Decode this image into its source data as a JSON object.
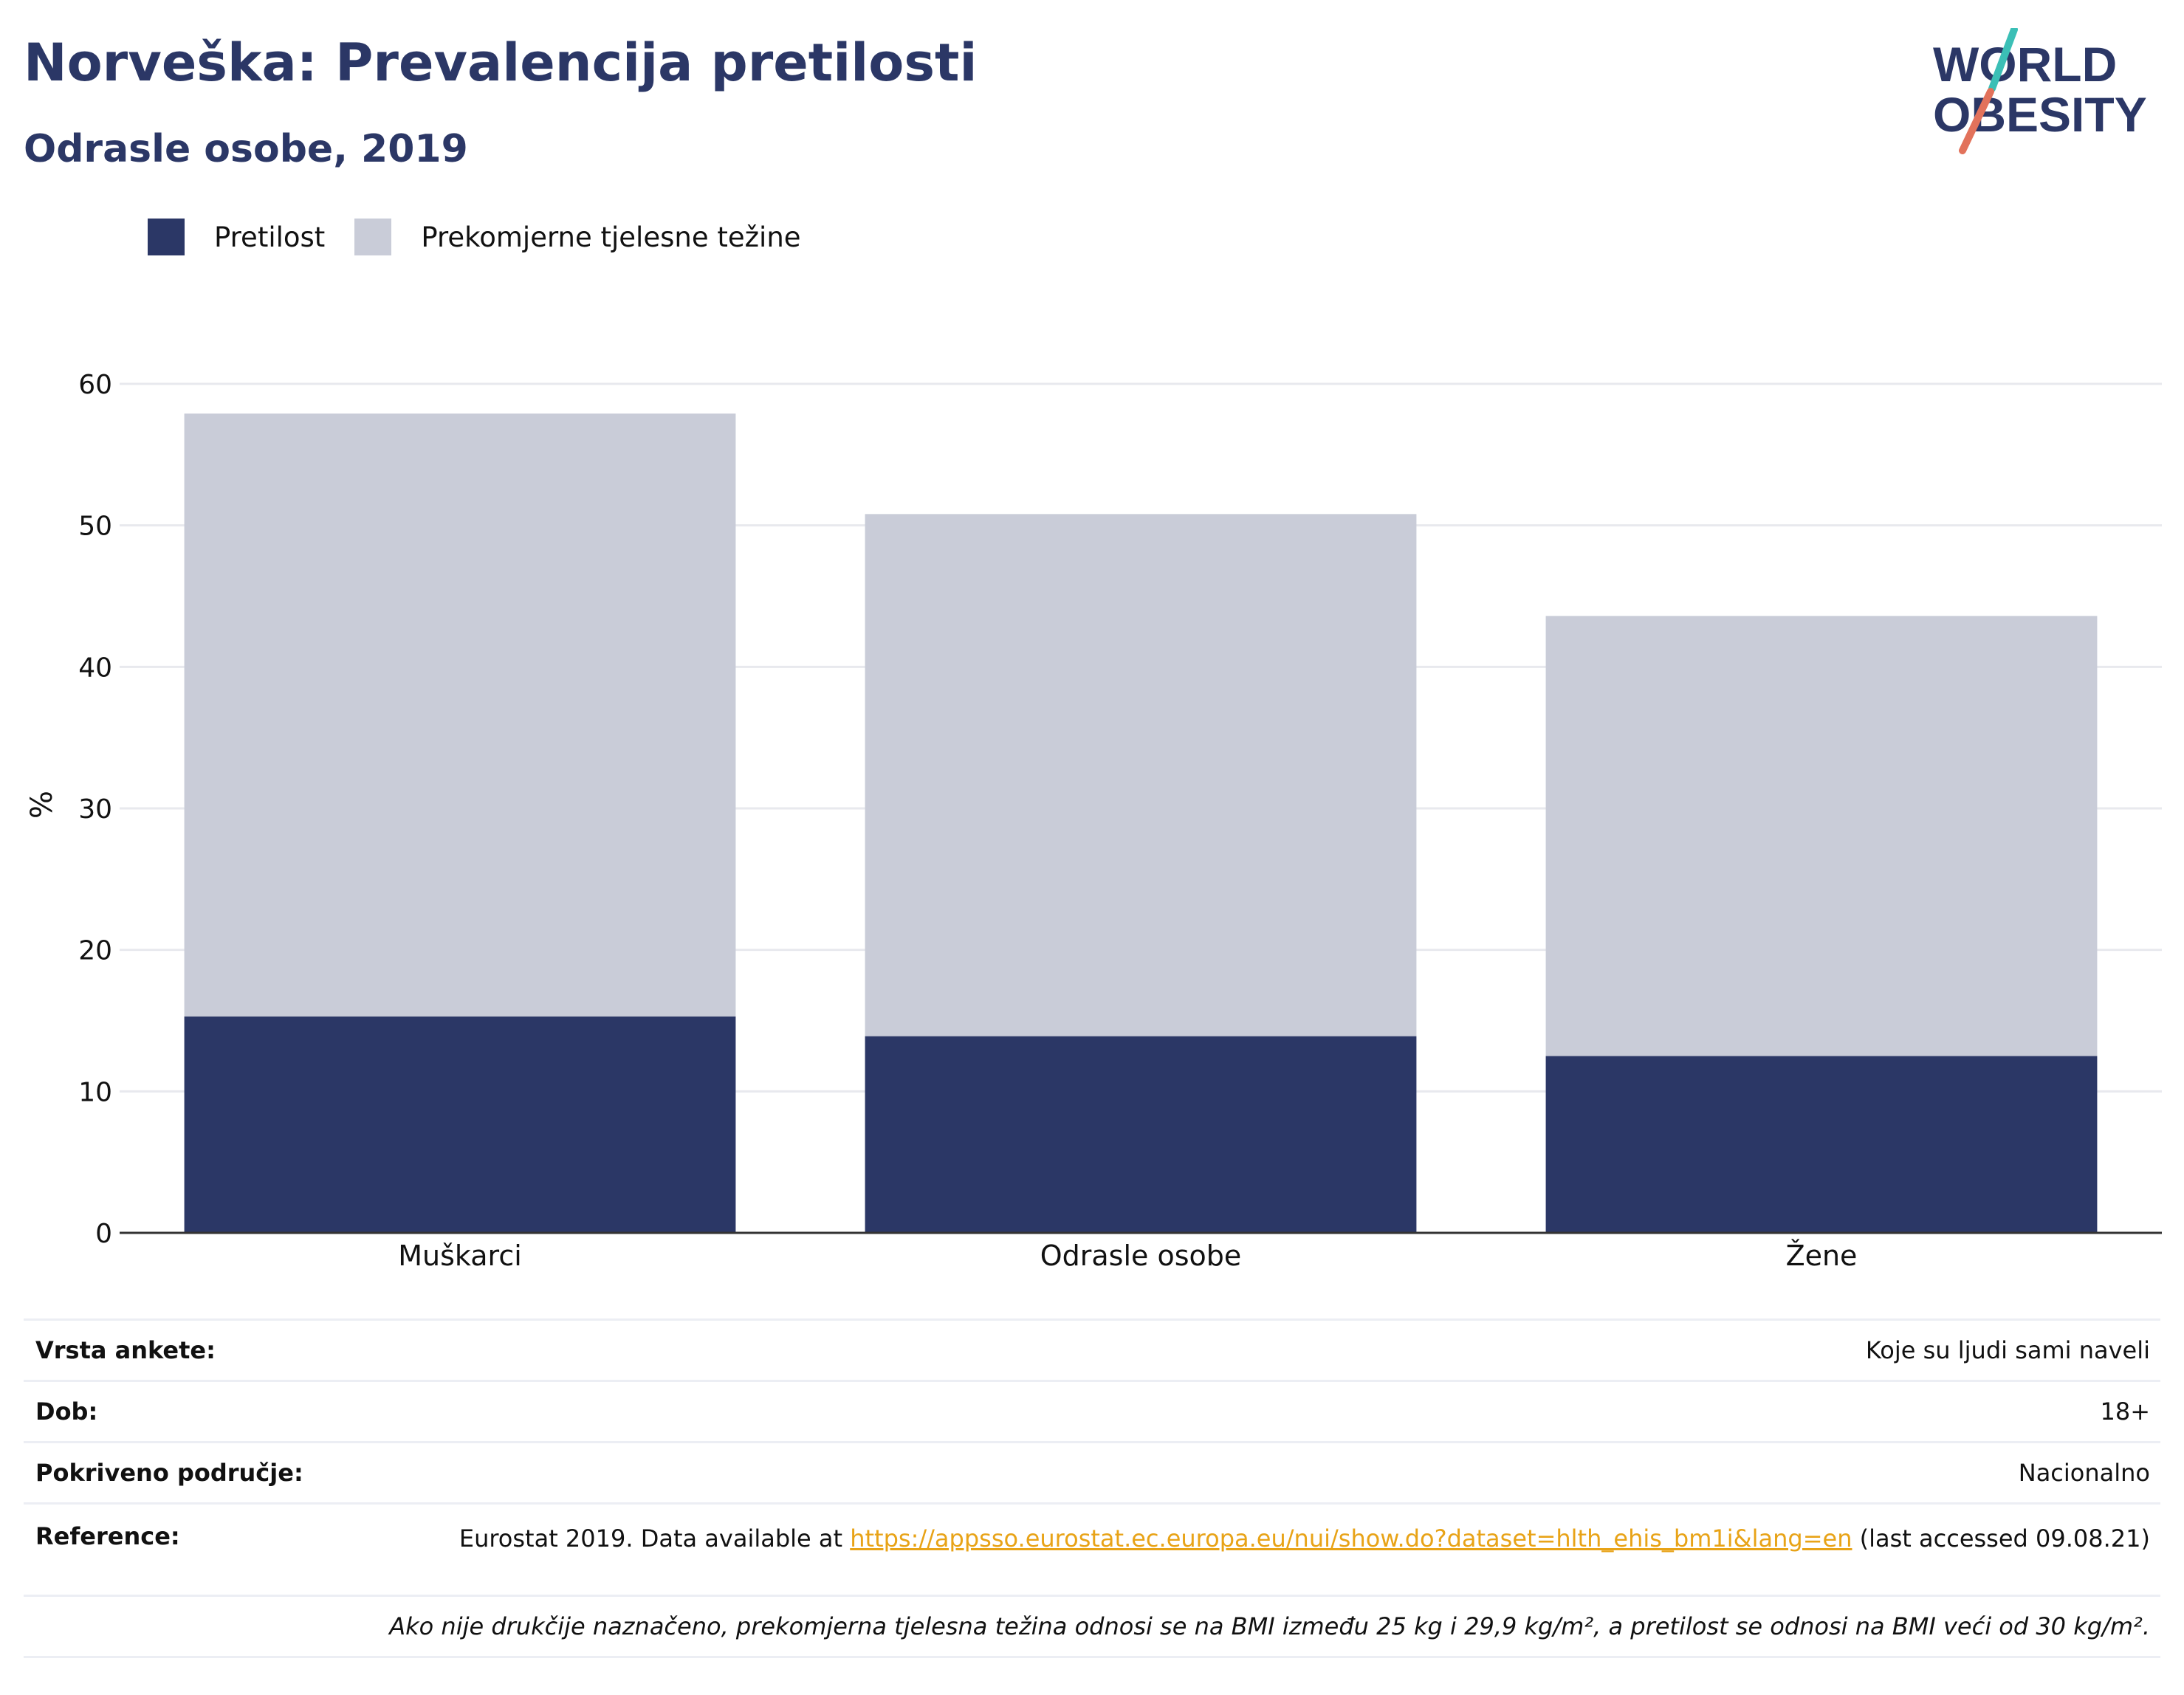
{
  "header": {
    "title": "Norveška: Prevalencija pretilosti",
    "subtitle": "Odrasle osobe, 2019"
  },
  "logo": {
    "line1": "WORLD",
    "line2": "OBESITY",
    "slash_colors": [
      "#3bbfb6",
      "#e2725b"
    ]
  },
  "chart_data": {
    "type": "bar",
    "stacked": true,
    "categories": [
      "Muškarci",
      "Odrasle osobe",
      "Žene"
    ],
    "series": [
      {
        "name": "Pretilost",
        "color": "#2b3766",
        "values": [
          15.3,
          13.9,
          12.5
        ]
      },
      {
        "name": "Prekomjerne tjelesne težine",
        "color": "#c9ccd8",
        "values": [
          42.6,
          36.9,
          31.1
        ]
      }
    ],
    "ylabel": "%",
    "xlabel": "",
    "ylim": [
      0,
      60
    ],
    "yticks": [
      0,
      10,
      20,
      30,
      40,
      50,
      60
    ],
    "grid": true,
    "legend": "top-left"
  },
  "info": {
    "survey_label": "Vrsta ankete:",
    "survey_value": "Koje su ljudi sami naveli",
    "age_label": "Dob:",
    "age_value": "18+",
    "coverage_label": "Pokriveno područje:",
    "coverage_value": "Nacionalno",
    "reference_label": "Reference:",
    "reference_prefix": "Eurostat 2019. Data available at ",
    "reference_link": "https://appsso.eurostat.ec.europa.eu/nui/show.do?dataset=hlth_ehis_bm1i&lang=en",
    "reference_suffix": " (last accessed 09.08.21)",
    "note": "Ako nije drukčije naznačeno, prekomjerna tjelesna težina odnosi se na BMI između 25 kg i 29,9 kg/m², a pretilost se odnosi na BMI veći od 30 kg/m²."
  }
}
